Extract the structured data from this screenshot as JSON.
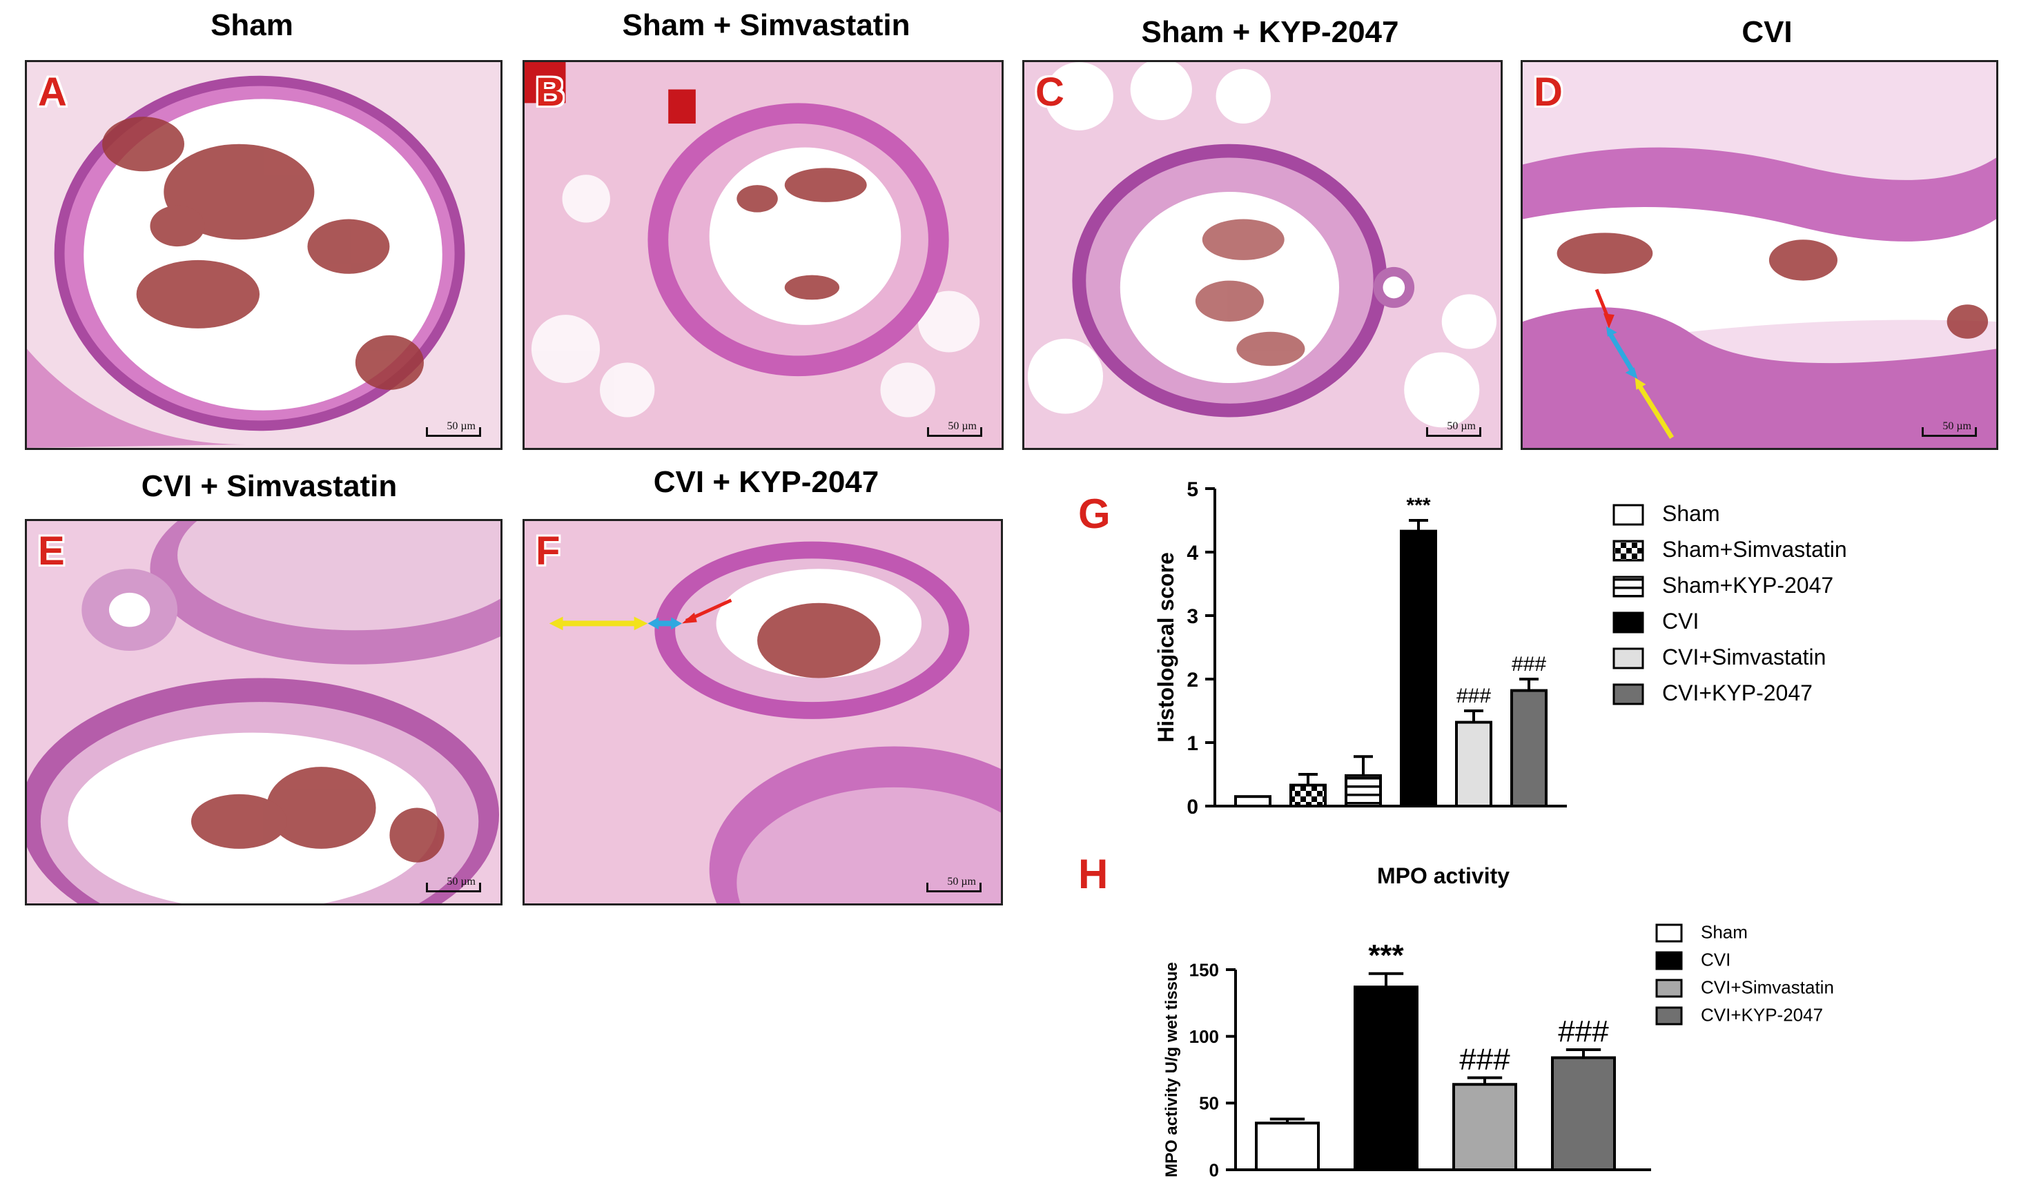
{
  "panels": [
    {
      "label": "A",
      "title": "Sham",
      "scale": "50 µm"
    },
    {
      "label": "B",
      "title": "Sham + Simvastatin",
      "scale": "50 µm"
    },
    {
      "label": "C",
      "title": "Sham + KYP-2047",
      "scale": "50 µm"
    },
    {
      "label": "D",
      "title": "CVI",
      "scale": "50 µm"
    },
    {
      "label": "E",
      "title": "CVI + Simvastatin",
      "scale": "50 µm"
    },
    {
      "label": "F",
      "title": "CVI + KYP-2047",
      "scale": "50 µm"
    }
  ],
  "panel_labels": {
    "g": "G",
    "h": "H"
  },
  "colors": {
    "stain": "#c860b8",
    "rbc": "#9c3a3a",
    "arrow_red": "#e8241c",
    "arrow_blue": "#2fa8e0",
    "arrow_yellow": "#f2e21c"
  },
  "chart_data": [
    {
      "type": "bar",
      "title": "",
      "xlabel": "",
      "ylabel": "Histological score",
      "ylim": [
        0,
        5
      ],
      "yticks": [
        "0",
        "1",
        "2",
        "3",
        "4",
        "5"
      ],
      "categories": [
        "Sham",
        "Sham+Simvastatin",
        "Sham+KYP-2047",
        "CVI",
        "CVI+Simvastatin",
        "CVI+KYP-2047"
      ],
      "values": [
        0.15,
        0.33,
        0.48,
        4.33,
        1.32,
        1.82
      ],
      "errors": [
        0.0,
        0.17,
        0.3,
        0.17,
        0.18,
        0.18
      ],
      "fills": [
        "#ffffff",
        "checker",
        "hstripes",
        "#000000",
        "#e0e0e0",
        "#707070"
      ],
      "annotations": [
        "",
        "",
        "",
        "***",
        "###",
        "###"
      ],
      "legend": [
        "Sham",
        "Sham+Simvastatin",
        "Sham+KYP-2047",
        "CVI",
        "CVI+Simvastatin",
        "CVI+KYP-2047"
      ],
      "legend_position": "right"
    },
    {
      "type": "bar",
      "title": "MPO activity",
      "xlabel": "",
      "ylabel": "MPO activity U/g wet tissue",
      "ylim": [
        0,
        150
      ],
      "yticks": [
        "0",
        "50",
        "100",
        "150"
      ],
      "categories": [
        "Sham",
        "CVI",
        "CVI+Simvastatin",
        "CVI+KYP-2047"
      ],
      "values": [
        35,
        137,
        64,
        84
      ],
      "errors": [
        3,
        10,
        5,
        6
      ],
      "fills": [
        "#ffffff",
        "#000000",
        "#a8a8a8",
        "#707070"
      ],
      "annotations": [
        "",
        "***",
        "###",
        "###"
      ],
      "legend": [
        "Sham",
        "CVI",
        "CVI+Simvastatin",
        "CVI+KYP-2047"
      ],
      "legend_position": "right"
    }
  ]
}
